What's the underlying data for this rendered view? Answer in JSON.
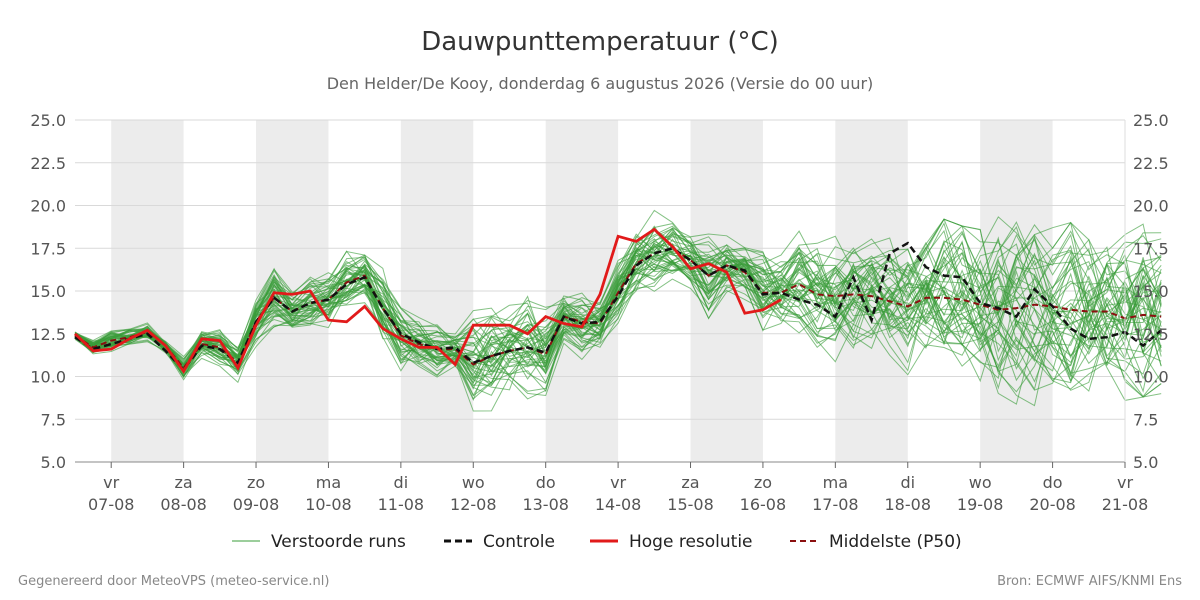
{
  "header": {
    "title": "Dauwpunttemperatuur (°C)",
    "subtitle": "Den Helder/De Kooy, donderdag  6 augustus 2026 (Versie do 00 uur)"
  },
  "footer": {
    "generated_by": "Gegenereerd door MeteoVPS (meteo-service.nl)",
    "source": "Bron: ECMWF AIFS/KNMI Ens"
  },
  "colors": {
    "ensemble": "#3a9c3a",
    "control": "#111111",
    "high_res": "#e11a1a",
    "median": "#8b1010",
    "weekend_band": "#ececec",
    "grid": "#d9d9d9"
  },
  "chart_data": {
    "type": "line",
    "ylim": [
      5.0,
      25.0
    ],
    "y_ticks": [
      "5.0",
      "7.5",
      "10.0",
      "12.5",
      "15.0",
      "17.5",
      "20.0",
      "22.5",
      "25.0"
    ],
    "x_range_days": [
      "2026-08-06 12:00",
      "2026-08-21 00:00"
    ],
    "x_ticks": [
      {
        "day": "vr",
        "date": "07-08"
      },
      {
        "day": "za",
        "date": "08-08"
      },
      {
        "day": "zo",
        "date": "09-08"
      },
      {
        "day": "ma",
        "date": "10-08"
      },
      {
        "day": "di",
        "date": "11-08"
      },
      {
        "day": "wo",
        "date": "12-08"
      },
      {
        "day": "do",
        "date": "13-08"
      },
      {
        "day": "vr",
        "date": "14-08"
      },
      {
        "day": "za",
        "date": "15-08"
      },
      {
        "day": "zo",
        "date": "16-08"
      },
      {
        "day": "ma",
        "date": "17-08"
      },
      {
        "day": "di",
        "date": "18-08"
      },
      {
        "day": "wo",
        "date": "19-08"
      },
      {
        "day": "do",
        "date": "20-08"
      },
      {
        "day": "vr",
        "date": "21-08"
      }
    ],
    "shaded_bands": [
      [
        "2026-08-07",
        "2026-08-08"
      ],
      [
        "2026-08-09",
        "2026-08-10"
      ],
      [
        "2026-08-11",
        "2026-08-12"
      ],
      [
        "2026-08-13",
        "2026-08-14"
      ],
      [
        "2026-08-15",
        "2026-08-16"
      ],
      [
        "2026-08-17",
        "2026-08-18"
      ],
      [
        "2026-08-19",
        "2026-08-20"
      ]
    ],
    "grid": true,
    "legend_position": "bottom",
    "series": [
      {
        "name": "Controle",
        "style": "dashed",
        "x_start": "2026-08-06 12:00",
        "x_step_hours": 6,
        "values": [
          12.3,
          11.6,
          11.9,
          12.2,
          12.5,
          11.5,
          10.4,
          11.8,
          11.6,
          10.8,
          13.2,
          14.6,
          13.8,
          14.3,
          14.5,
          15.4,
          15.8,
          14.0,
          12.5,
          12.0,
          11.6,
          11.7,
          10.8,
          11.2,
          11.5,
          11.7,
          11.4,
          13.5,
          13.1,
          13.2,
          14.7,
          16.5,
          17.2,
          17.5,
          16.8,
          15.9,
          16.5,
          16.2,
          14.8,
          14.9,
          14.5,
          14.2,
          13.5,
          15.8,
          13.3,
          17.2,
          17.8,
          16.4,
          15.9,
          15.8,
          14.3,
          14.0,
          13.5,
          15.1,
          14.1,
          12.8,
          12.2,
          12.3,
          12.6,
          11.8,
          12.7
        ]
      },
      {
        "name": "Hoge resolutie",
        "style": "solid",
        "x_start": "2026-08-06 12:00",
        "x_step_hours": 6,
        "values": [
          12.5,
          11.5,
          11.6,
          12.2,
          12.7,
          11.8,
          10.3,
          12.2,
          12.1,
          10.5,
          13.0,
          14.9,
          14.8,
          15.0,
          13.3,
          13.2,
          14.1,
          12.8,
          12.2,
          11.7,
          11.7,
          10.7,
          13.0,
          13.0,
          13.0,
          12.5,
          13.5,
          13.1,
          12.9,
          14.8,
          18.2,
          17.9,
          18.6,
          17.6,
          16.3,
          16.6,
          16.1,
          13.7,
          13.9,
          14.5
        ]
      },
      {
        "name": "Middelste (P50)",
        "style": "dashed",
        "x_start": "2026-08-06 12:00",
        "x_step_hours": 6,
        "values": [
          12.4,
          11.7,
          12.1,
          12.3,
          12.6,
          11.8,
          10.5,
          11.9,
          11.7,
          10.8,
          13.2,
          14.6,
          13.8,
          14.3,
          14.5,
          15.5,
          15.9,
          14.0,
          12.4,
          11.9,
          11.6,
          11.6,
          10.7,
          11.2,
          11.5,
          11.7,
          11.3,
          13.5,
          13.2,
          13.1,
          14.9,
          16.6,
          17.2,
          17.5,
          16.8,
          15.9,
          16.5,
          16.1,
          14.9,
          14.9,
          15.4,
          14.8,
          14.7,
          14.8,
          14.7,
          14.4,
          14.1,
          14.6,
          14.6,
          14.5,
          14.2,
          13.9,
          14.0,
          14.2,
          14.1,
          13.9,
          13.8,
          13.8,
          13.4,
          13.6,
          13.5
        ]
      },
      {
        "name": "Verstoorde runs",
        "style": "thin",
        "member_count": 50,
        "x_start": "2026-08-06 12:00",
        "x_step_hours": 6,
        "envelope_min": [
          11.5,
          10.8,
          11.0,
          11.3,
          11.0,
          10.6,
          9.0,
          10.2,
          9.9,
          9.2,
          10.8,
          11.8,
          11.0,
          11.6,
          11.2,
          11.0,
          12.5,
          10.4,
          9.6,
          9.8,
          9.5,
          7.4,
          7.0,
          7.2,
          7.5,
          7.7,
          8.2,
          11.0,
          11.0,
          11.2,
          12.7,
          10.0,
          13.0,
          13.6,
          13.7,
          13.1,
          13.2,
          12.6,
          12.2,
          12.4,
          11.5,
          11.2,
          10.8,
          10.8,
          10.2,
          9.8,
          9.2,
          8.6,
          8.2,
          8.0,
          8.5,
          8.2,
          8.3,
          8.3,
          8.3,
          8.5,
          8.5,
          8.6,
          8.6,
          8.8,
          9.0
        ],
        "envelope_max": [
          12.9,
          12.8,
          14.0,
          13.7,
          13.6,
          12.5,
          11.7,
          13.5,
          14.1,
          13.3,
          16.4,
          17.3,
          15.5,
          16.4,
          16.8,
          18.3,
          18.2,
          17.3,
          15.5,
          14.0,
          14.1,
          12.8,
          16.7,
          15.0,
          14.8,
          16.1,
          16.2,
          15.3,
          18.5,
          17.9,
          18.5,
          19.0,
          20.1,
          19.6,
          18.6,
          18.9,
          18.3,
          17.8,
          19.2,
          19.4,
          18.5,
          18.0,
          18.2,
          18.6,
          18.4,
          18.1,
          18.0,
          18.2,
          19.2,
          18.8,
          18.6,
          19.4,
          19.2,
          19.0,
          18.7,
          19.0,
          18.0,
          18.4,
          18.3,
          19.0,
          19.5
        ]
      }
    ],
    "legend": [
      {
        "label": "Verstoorde runs",
        "style": "thin"
      },
      {
        "label": "Controle",
        "style": "dashed"
      },
      {
        "label": "Hoge resolutie",
        "style": "solid"
      },
      {
        "label": "Middelste (P50)",
        "style": "dashed"
      }
    ]
  }
}
